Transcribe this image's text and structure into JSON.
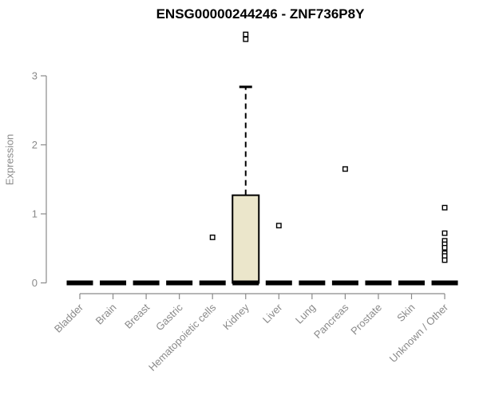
{
  "title": "ENSG00000244246 - ZNF736P8Y",
  "ylabel": "Expression",
  "colors": {
    "box_fill": "#EBE6CB",
    "box_stroke": "#000000",
    "median_color": "#000000",
    "axis_color": "#8a8a8a",
    "label_color": "#8a8a8a",
    "title_color": "#000000",
    "outlier_fill": "#ffffff",
    "outlier_stroke": "#000000",
    "background": "#ffffff"
  },
  "chart_data": {
    "type": "boxplot",
    "title": "ENSG00000244246 - ZNF736P8Y",
    "xlabel": "",
    "ylabel": "Expression",
    "ylim": [
      0,
      3.75
    ],
    "yticks": [
      0,
      1,
      2,
      3
    ],
    "grid": false,
    "legend": "none",
    "categories": [
      "Bladder",
      "Brain",
      "Breast",
      "Gastric",
      "Hematopoietic cells",
      "Kidney",
      "Liver",
      "Lung",
      "Pancreas",
      "Prostate",
      "Skin",
      "Unknown / Other"
    ],
    "boxes": [
      {
        "category": "Bladder",
        "whisker_low": 0,
        "q1": 0,
        "median": 0,
        "q3": 0,
        "whisker_high": 0,
        "outliers": []
      },
      {
        "category": "Brain",
        "whisker_low": 0,
        "q1": 0,
        "median": 0,
        "q3": 0,
        "whisker_high": 0,
        "outliers": []
      },
      {
        "category": "Breast",
        "whisker_low": 0,
        "q1": 0,
        "median": 0,
        "q3": 0,
        "whisker_high": 0,
        "outliers": []
      },
      {
        "category": "Gastric",
        "whisker_low": 0,
        "q1": 0,
        "median": 0,
        "q3": 0,
        "whisker_high": 0,
        "outliers": []
      },
      {
        "category": "Hematopoietic cells",
        "whisker_low": 0,
        "q1": 0,
        "median": 0,
        "q3": 0,
        "whisker_high": 0,
        "outliers": [
          0.66
        ]
      },
      {
        "category": "Kidney",
        "whisker_low": 0,
        "q1": 0,
        "median": 0,
        "q3": 1.27,
        "whisker_high": 2.84,
        "outliers": [
          3.6,
          3.53
        ]
      },
      {
        "category": "Liver",
        "whisker_low": 0,
        "q1": 0,
        "median": 0,
        "q3": 0,
        "whisker_high": 0,
        "outliers": [
          0.83
        ]
      },
      {
        "category": "Lung",
        "whisker_low": 0,
        "q1": 0,
        "median": 0,
        "q3": 0,
        "whisker_high": 0,
        "outliers": []
      },
      {
        "category": "Pancreas",
        "whisker_low": 0,
        "q1": 0,
        "median": 0,
        "q3": 0,
        "whisker_high": 0,
        "outliers": [
          1.65
        ]
      },
      {
        "category": "Prostate",
        "whisker_low": 0,
        "q1": 0,
        "median": 0,
        "q3": 0,
        "whisker_high": 0,
        "outliers": []
      },
      {
        "category": "Skin",
        "whisker_low": 0,
        "q1": 0,
        "median": 0,
        "q3": 0,
        "whisker_high": 0,
        "outliers": []
      },
      {
        "category": "Unknown / Other",
        "whisker_low": 0,
        "q1": 0,
        "median": 0,
        "q3": 0,
        "whisker_high": 0,
        "outliers": [
          1.09,
          0.72,
          0.61,
          0.56,
          0.51,
          0.43,
          0.39,
          0.33
        ]
      }
    ]
  }
}
